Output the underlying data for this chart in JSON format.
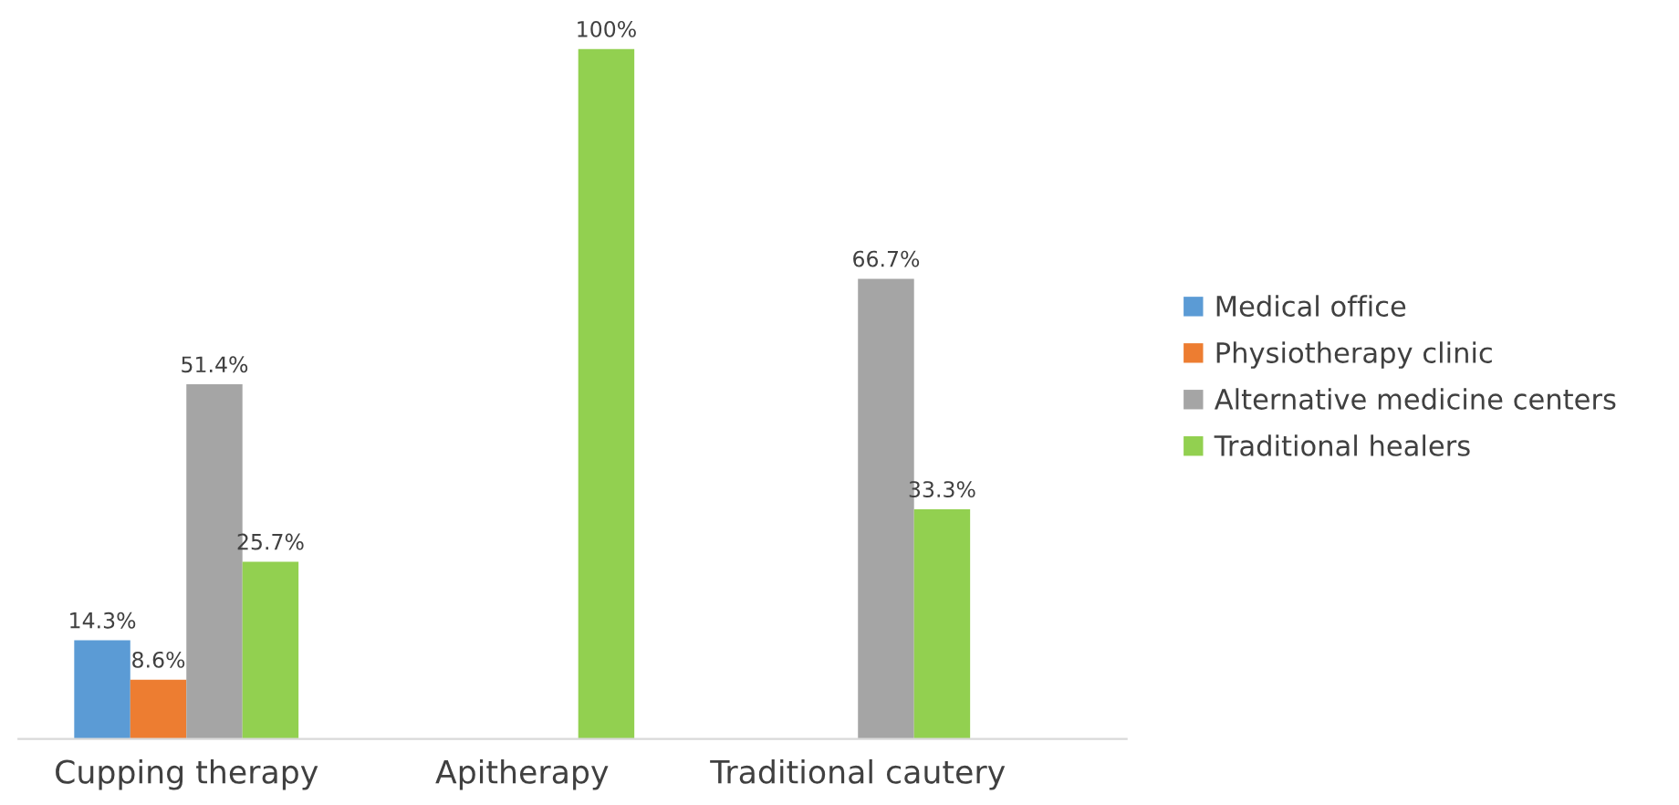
{
  "chart_data": {
    "type": "bar",
    "categories": [
      "Cupping therapy",
      "Apitherapy",
      "Traditional cautery"
    ],
    "series": [
      {
        "name": "Medical office",
        "color": "#5b9bd5",
        "values": [
          14.3,
          null,
          null
        ],
        "value_labels": [
          "14.3%",
          null,
          null
        ]
      },
      {
        "name": "Physiotherapy clinic",
        "color": "#ed7d31",
        "values": [
          8.6,
          null,
          null
        ],
        "value_labels": [
          "8.6%",
          null,
          null
        ]
      },
      {
        "name": "Alternative medicine centers",
        "color": "#a5a5a5",
        "values": [
          51.4,
          null,
          66.7
        ],
        "value_labels": [
          "51.4%",
          null,
          "66.7%"
        ]
      },
      {
        "name": "Traditional healers",
        "color": "#92d050",
        "values": [
          25.7,
          100,
          33.3
        ],
        "value_labels": [
          "25.7%",
          "100%",
          "33.3%"
        ]
      }
    ],
    "legend": "right",
    "grid": false
  }
}
